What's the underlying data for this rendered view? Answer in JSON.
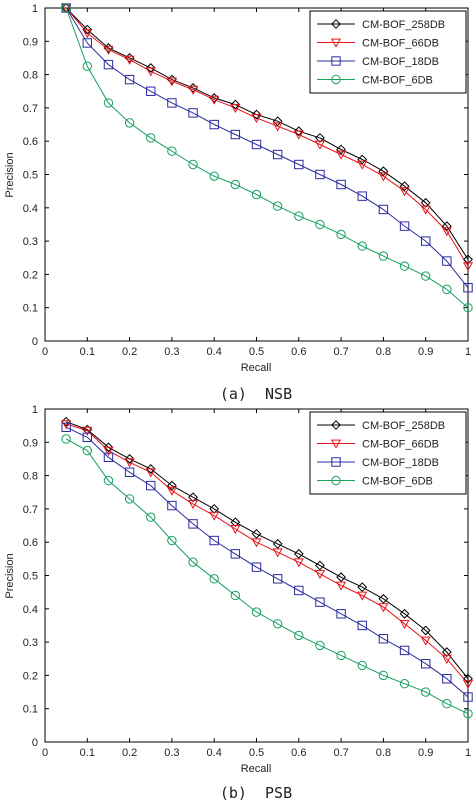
{
  "chart_data": [
    {
      "type": "line",
      "caption": "(a)  NSB",
      "xlabel": "Recall",
      "ylabel": "Precision",
      "xlim": [
        0,
        1
      ],
      "ylim": [
        0,
        1
      ],
      "xticks": [
        "0",
        "0.1",
        "0.2",
        "0.3",
        "0.4",
        "0.5",
        "0.6",
        "0.7",
        "0.8",
        "0.9",
        "1"
      ],
      "yticks": [
        "0",
        "0.1",
        "0.2",
        "0.3",
        "0.4",
        "0.5",
        "0.6",
        "0.7",
        "0.8",
        "0.9",
        "1"
      ],
      "legend_position": "top-right",
      "x": [
        0.05,
        0.1,
        0.15,
        0.2,
        0.25,
        0.3,
        0.35,
        0.4,
        0.45,
        0.5,
        0.55,
        0.6,
        0.65,
        0.7,
        0.75,
        0.8,
        0.85,
        0.9,
        0.95,
        1.0
      ],
      "series": [
        {
          "name": "CM-BOF_258DB",
          "color": "#000000",
          "marker": "diamond",
          "values": [
            1.0,
            0.935,
            0.88,
            0.85,
            0.82,
            0.785,
            0.76,
            0.73,
            0.71,
            0.68,
            0.66,
            0.63,
            0.61,
            0.575,
            0.545,
            0.51,
            0.465,
            0.415,
            0.345,
            0.245
          ]
        },
        {
          "name": "CM-BOF_66DB",
          "color": "#e8141a",
          "marker": "triangle-down",
          "values": [
            1.0,
            0.925,
            0.875,
            0.845,
            0.81,
            0.78,
            0.755,
            0.725,
            0.7,
            0.67,
            0.645,
            0.62,
            0.59,
            0.56,
            0.53,
            0.495,
            0.45,
            0.395,
            0.33,
            0.225
          ]
        },
        {
          "name": "CM-BOF_18DB",
          "color": "#2b2ba0",
          "marker": "square",
          "values": [
            1.0,
            0.895,
            0.83,
            0.785,
            0.75,
            0.715,
            0.685,
            0.65,
            0.62,
            0.59,
            0.56,
            0.53,
            0.5,
            0.47,
            0.435,
            0.395,
            0.345,
            0.3,
            0.24,
            0.16
          ]
        },
        {
          "name": "CM-BOF_6DB",
          "color": "#16a060",
          "marker": "circle",
          "values": [
            1.0,
            0.825,
            0.715,
            0.655,
            0.61,
            0.57,
            0.53,
            0.495,
            0.47,
            0.44,
            0.405,
            0.375,
            0.35,
            0.32,
            0.285,
            0.255,
            0.225,
            0.195,
            0.155,
            0.1
          ]
        }
      ]
    },
    {
      "type": "line",
      "caption": "(b)  PSB",
      "xlabel": "Recall",
      "ylabel": "Precision",
      "xlim": [
        0,
        1
      ],
      "ylim": [
        0,
        1
      ],
      "xticks": [
        "0",
        "0.1",
        "0.2",
        "0.3",
        "0.4",
        "0.5",
        "0.6",
        "0.7",
        "0.8",
        "0.9",
        "1"
      ],
      "yticks": [
        "0",
        "0.1",
        "0.2",
        "0.3",
        "0.4",
        "0.5",
        "0.6",
        "0.7",
        "0.8",
        "0.9",
        "1"
      ],
      "legend_position": "top-right",
      "x": [
        0.05,
        0.1,
        0.15,
        0.2,
        0.25,
        0.3,
        0.35,
        0.4,
        0.45,
        0.5,
        0.55,
        0.6,
        0.65,
        0.7,
        0.75,
        0.8,
        0.85,
        0.9,
        0.95,
        1.0
      ],
      "series": [
        {
          "name": "CM-BOF_258DB",
          "color": "#000000",
          "marker": "diamond",
          "values": [
            0.962,
            0.938,
            0.885,
            0.85,
            0.82,
            0.77,
            0.735,
            0.7,
            0.66,
            0.625,
            0.595,
            0.565,
            0.53,
            0.495,
            0.465,
            0.43,
            0.385,
            0.335,
            0.27,
            0.19
          ]
        },
        {
          "name": "CM-BOF_66DB",
          "color": "#e8141a",
          "marker": "triangle-down",
          "values": [
            0.955,
            0.935,
            0.875,
            0.84,
            0.81,
            0.755,
            0.715,
            0.68,
            0.64,
            0.6,
            0.57,
            0.54,
            0.505,
            0.47,
            0.44,
            0.405,
            0.355,
            0.305,
            0.25,
            0.175
          ]
        },
        {
          "name": "CM-BOF_18DB",
          "color": "#2b2ba0",
          "marker": "square",
          "values": [
            0.945,
            0.915,
            0.855,
            0.81,
            0.77,
            0.71,
            0.655,
            0.605,
            0.565,
            0.525,
            0.49,
            0.455,
            0.42,
            0.385,
            0.35,
            0.31,
            0.275,
            0.235,
            0.19,
            0.135
          ]
        },
        {
          "name": "CM-BOF_6DB",
          "color": "#16a060",
          "marker": "circle",
          "values": [
            0.91,
            0.875,
            0.785,
            0.73,
            0.675,
            0.605,
            0.54,
            0.49,
            0.44,
            0.39,
            0.355,
            0.32,
            0.29,
            0.26,
            0.23,
            0.2,
            0.175,
            0.15,
            0.115,
            0.085
          ]
        }
      ]
    }
  ]
}
